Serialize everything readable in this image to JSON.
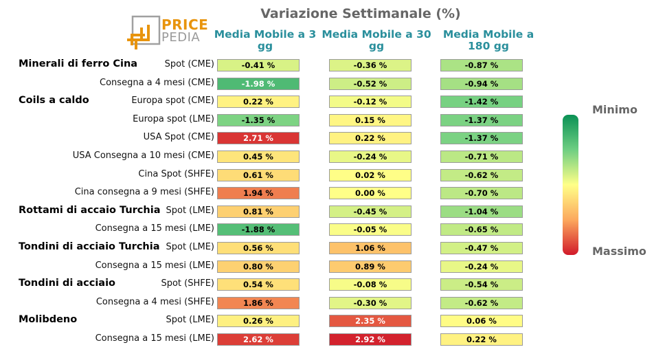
{
  "logo": {
    "word1": "PRICE",
    "word2": "PEDIA"
  },
  "chart_data": {
    "type": "table",
    "title": "Variazione Settimanale (%)",
    "columns": [
      "Media Mobile a 3 gg",
      "Media Mobile a 30 gg",
      "Media Mobile a 180 gg"
    ],
    "rows": [
      {
        "group": "Minerali di ferro Cina",
        "label": "Spot (CME)",
        "values": [
          -0.41,
          -0.36,
          -0.87
        ],
        "display": [
          "-0.41 %",
          "-0.36 %",
          "-0.87 %"
        ]
      },
      {
        "group": "",
        "label": "Consegna a 4 mesi (CME)",
        "values": [
          -1.98,
          -0.52,
          -0.94
        ],
        "display": [
          "-1.98 %",
          "-0.52 %",
          "-0.94 %"
        ]
      },
      {
        "group": "Coils a caldo",
        "label": "Europa spot (CME)",
        "values": [
          0.22,
          -0.12,
          -1.42
        ],
        "display": [
          "0.22 %",
          "-0.12 %",
          "-1.42 %"
        ]
      },
      {
        "group": "",
        "label": "Europa spot (LME)",
        "values": [
          -1.35,
          0.15,
          -1.37
        ],
        "display": [
          "-1.35 %",
          "0.15 %",
          "-1.37 %"
        ]
      },
      {
        "group": "",
        "label": "USA Spot (CME)",
        "values": [
          2.71,
          0.22,
          -1.37
        ],
        "display": [
          "2.71 %",
          "0.22 %",
          "-1.37 %"
        ]
      },
      {
        "group": "",
        "label": "USA Consegna a 10 mesi (CME)",
        "values": [
          0.45,
          -0.24,
          -0.71
        ],
        "display": [
          "0.45 %",
          "-0.24 %",
          "-0.71 %"
        ]
      },
      {
        "group": "",
        "label": "Cina Spot (SHFE)",
        "values": [
          0.61,
          0.02,
          -0.62
        ],
        "display": [
          "0.61 %",
          "0.02 %",
          "-0.62 %"
        ]
      },
      {
        "group": "",
        "label": "Cina consegna a 9 mesi (SHFE)",
        "values": [
          1.94,
          0.0,
          -0.7
        ],
        "display": [
          "1.94 %",
          "0.00 %",
          "-0.70 %"
        ]
      },
      {
        "group": "Rottami di accaio Turchia",
        "label": "Spot (LME)",
        "values": [
          0.81,
          -0.45,
          -1.04
        ],
        "display": [
          "0.81 %",
          "-0.45 %",
          "-1.04 %"
        ]
      },
      {
        "group": "",
        "label": "Consegna a 15 mesi (LME)",
        "values": [
          -1.88,
          -0.05,
          -0.65
        ],
        "display": [
          "-1.88 %",
          "-0.05 %",
          "-0.65 %"
        ]
      },
      {
        "group": "Tondini di acciaio Turchia",
        "label": "Spot (LME)",
        "values": [
          0.56,
          1.06,
          -0.47
        ],
        "display": [
          "0.56 %",
          "1.06 %",
          "-0.47 %"
        ]
      },
      {
        "group": "",
        "label": "Consegna a 15 mesi (LME)",
        "values": [
          0.8,
          0.89,
          -0.24
        ],
        "display": [
          "0.80 %",
          "0.89 %",
          "-0.24 %"
        ]
      },
      {
        "group": "Tondini di acciaio",
        "label": "Spot (SHFE)",
        "values": [
          0.54,
          -0.08,
          -0.54
        ],
        "display": [
          "0.54 %",
          "-0.08 %",
          "-0.54 %"
        ]
      },
      {
        "group": "",
        "label": "Consegna a 4 mesi (SHFE)",
        "values": [
          1.86,
          -0.3,
          -0.62
        ],
        "display": [
          "1.86 %",
          "-0.30 %",
          "-0.62 %"
        ]
      },
      {
        "group": "Molibdeno",
        "label": "Spot (LME)",
        "values": [
          0.26,
          2.35,
          0.06
        ],
        "display": [
          "0.26 %",
          "2.35 %",
          "0.06 %"
        ]
      },
      {
        "group": "",
        "label": "Consegna a 15 mesi (LME)",
        "values": [
          2.62,
          2.92,
          0.22
        ],
        "display": [
          "2.62 %",
          "2.92 %",
          "0.22 %"
        ]
      }
    ],
    "color_scale": {
      "min_label": "Minimo",
      "max_label": "Massimo",
      "min_color": "#0a9155",
      "mid_color": "#ffff88",
      "max_color": "#d11a2a"
    }
  }
}
